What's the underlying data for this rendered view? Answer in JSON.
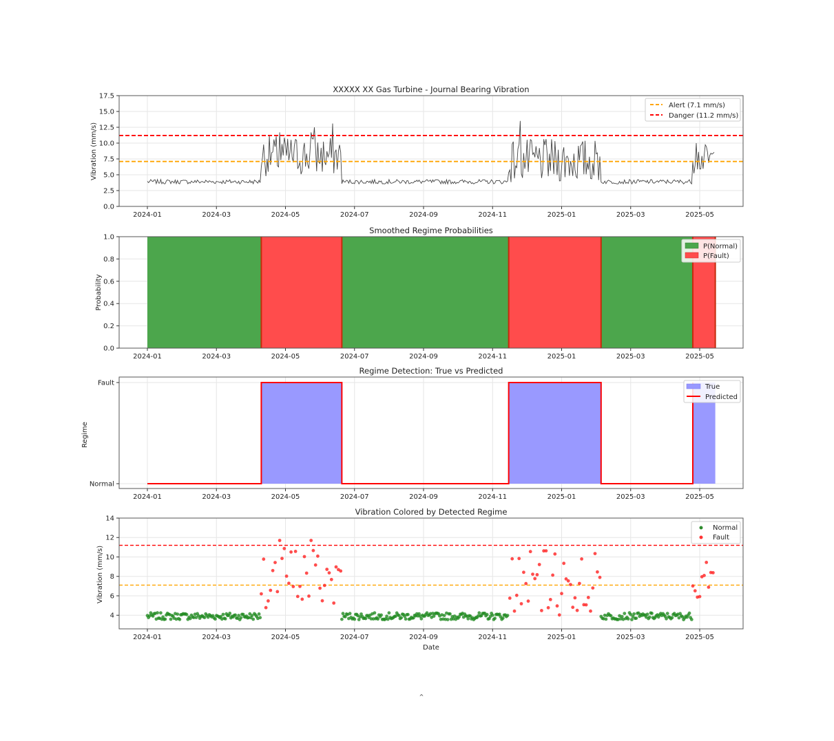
{
  "figure": {
    "footer_mark": "^"
  },
  "thresholds": {
    "alert": 7.1,
    "danger": 11.2,
    "alert_color": "#ffa500",
    "danger_color": "#ff0000"
  },
  "colors": {
    "line": "#444444",
    "normal": "#2e8b2e",
    "normal_fill": "#4ca64c",
    "fault": "#ff3333",
    "fault_fill": "#ff4c4c",
    "true_fill": "#9999ff",
    "predicted": "#ff0000"
  },
  "x_ticks": [
    "2024-01",
    "2024-03",
    "2024-05",
    "2024-07",
    "2024-09",
    "2024-11",
    "2025-01",
    "2025-03",
    "2025-05"
  ],
  "chart_data": [
    {
      "type": "line",
      "title": "XXXXX XX Gas Turbine - Journal Bearing Vibration",
      "xlabel": "",
      "ylabel": "Vibration (mm/s)",
      "ylim": [
        0,
        17.5
      ],
      "yticks": [
        "0.0",
        "2.5",
        "5.0",
        "7.5",
        "10.0",
        "12.5",
        "15.0",
        "17.5"
      ],
      "x_range": [
        "2024-01-01",
        "2025-05-15"
      ],
      "grid": true,
      "legend": {
        "position": "upper right",
        "entries": [
          "Alert (7.1 mm/s)",
          "Danger (11.2 mm/s)"
        ]
      },
      "hlines": [
        {
          "label": "Alert (7.1 mm/s)",
          "y": 7.1,
          "style": "dashed",
          "color": "#ffa500"
        },
        {
          "label": "Danger (11.2 mm/s)",
          "y": 11.2,
          "style": "dashed",
          "color": "#ff0000"
        }
      ],
      "segments": [
        {
          "regime": "Normal",
          "start": "2024-01-01",
          "end": "2024-04-10",
          "mean": 3.9,
          "range": [
            3.1,
            4.5
          ]
        },
        {
          "regime": "Fault",
          "start": "2024-04-10",
          "end": "2024-06-20",
          "mean": 8.0,
          "range": [
            4.5,
            13.1
          ]
        },
        {
          "regime": "Normal",
          "start": "2024-06-20",
          "end": "2024-11-15",
          "mean": 3.9,
          "range": [
            3.3,
            4.6
          ]
        },
        {
          "regime": "Fault",
          "start": "2024-11-15",
          "end": "2025-02-05",
          "mean": 7.2,
          "range": [
            4.3,
            13.5
          ]
        },
        {
          "regime": "Normal",
          "start": "2025-02-05",
          "end": "2025-04-25",
          "mean": 3.9,
          "range": [
            3.3,
            4.5
          ]
        },
        {
          "regime": "Fault",
          "start": "2025-04-25",
          "end": "2025-05-15",
          "mean": 7.5,
          "range": [
            3.8,
            10.0
          ]
        }
      ],
      "peaks": [
        {
          "date": "2024-04-26",
          "value": 11.7
        },
        {
          "date": "2024-05-24",
          "value": 11.7
        },
        {
          "date": "2024-05-27",
          "value": 12.5
        },
        {
          "date": "2024-06-12",
          "value": 13.1
        },
        {
          "date": "2024-11-25",
          "value": 13.5
        },
        {
          "date": "2025-04-28",
          "value": 10.0
        }
      ]
    },
    {
      "type": "area",
      "title": "Smoothed Regime Probabilities",
      "xlabel": "",
      "ylabel": "Probability",
      "ylim": [
        0,
        1.0
      ],
      "yticks": [
        "0.0",
        "0.2",
        "0.4",
        "0.6",
        "0.8",
        "1.0"
      ],
      "grid": true,
      "legend": {
        "position": "upper right",
        "entries": [
          "P(Normal)",
          "P(Fault)"
        ]
      },
      "series": [
        {
          "name": "P(Normal)",
          "intervals": [
            [
              "2024-01-01",
              "2024-04-10"
            ],
            [
              "2024-06-20",
              "2024-11-15"
            ],
            [
              "2025-02-05",
              "2025-04-25"
            ]
          ],
          "value": 1.0
        },
        {
          "name": "P(Fault)",
          "intervals": [
            [
              "2024-04-10",
              "2024-06-20"
            ],
            [
              "2024-11-15",
              "2025-02-05"
            ],
            [
              "2025-04-25",
              "2025-05-15"
            ]
          ],
          "value": 1.0
        }
      ]
    },
    {
      "type": "line",
      "title": "Regime Detection: True vs Predicted",
      "xlabel": "",
      "ylabel": "Regime",
      "yticks": [
        "Normal",
        "Fault"
      ],
      "grid": true,
      "legend": {
        "position": "upper right",
        "entries": [
          "True",
          "Predicted"
        ]
      },
      "series": [
        {
          "name": "True",
          "style": "filled area",
          "fault_intervals": [
            [
              "2024-04-10",
              "2024-06-20"
            ],
            [
              "2024-11-15",
              "2025-02-05"
            ],
            [
              "2025-04-25",
              "2025-05-15"
            ]
          ]
        },
        {
          "name": "Predicted",
          "style": "step line",
          "fault_intervals": [
            [
              "2024-04-10",
              "2024-06-20"
            ],
            [
              "2024-11-15",
              "2025-02-05"
            ],
            [
              "2025-04-25",
              "2025-05-15"
            ]
          ]
        }
      ]
    },
    {
      "type": "scatter",
      "title": "Vibration Colored by Detected Regime",
      "xlabel": "Date",
      "ylabel": "Vibration (mm/s)",
      "ylim": [
        2.6,
        14
      ],
      "yticks": [
        "4",
        "6",
        "8",
        "10",
        "12",
        "14"
      ],
      "grid": true,
      "legend": {
        "position": "upper right",
        "entries": [
          "Normal",
          "Fault"
        ]
      },
      "hlines": [
        {
          "y": 7.1,
          "style": "dashed",
          "color": "#ffa500"
        },
        {
          "y": 11.2,
          "style": "dashed",
          "color": "#ff0000"
        }
      ],
      "series": [
        {
          "name": "Normal",
          "color": "green",
          "approx_level": 3.9,
          "spread": [
            3.1,
            4.6
          ]
        },
        {
          "name": "Fault",
          "color": "red",
          "approx_level": 7.6,
          "spread": [
            3.8,
            13.5
          ]
        }
      ]
    }
  ]
}
